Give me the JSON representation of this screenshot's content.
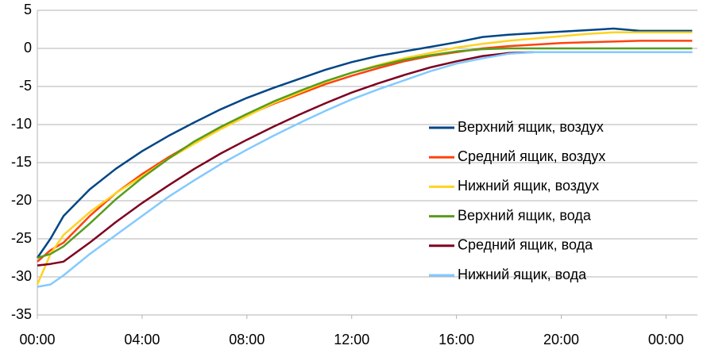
{
  "chart_data": {
    "type": "line",
    "x": [
      0,
      0.5,
      1,
      2,
      3,
      4,
      5,
      6,
      7,
      8,
      9,
      10,
      11,
      12,
      13,
      14,
      15,
      16,
      17,
      18,
      19,
      20,
      21,
      22,
      23,
      24,
      25
    ],
    "xlim": [
      0,
      25.2
    ],
    "xticks": [
      {
        "value": 0,
        "label": "00:00"
      },
      {
        "value": 4,
        "label": "04:00"
      },
      {
        "value": 8,
        "label": "08:00"
      },
      {
        "value": 12,
        "label": "12:00"
      },
      {
        "value": 16,
        "label": "16:00"
      },
      {
        "value": 20,
        "label": "20:00"
      },
      {
        "value": 24,
        "label": "00:00"
      }
    ],
    "ylim": [
      -35,
      5
    ],
    "yticks": [
      -35,
      -30,
      -25,
      -20,
      -15,
      -10,
      -5,
      0,
      5
    ],
    "grid": true,
    "legend": "right",
    "series": [
      {
        "name": "Верхний ящик, воздух",
        "color": "#004586",
        "values": [
          -27.5,
          -25,
          -22,
          -18.5,
          -15.8,
          -13.5,
          -11.5,
          -9.7,
          -8,
          -6.5,
          -5.2,
          -4,
          -2.8,
          -1.8,
          -1,
          -0.4,
          0.2,
          0.8,
          1.5,
          1.8,
          2,
          2.2,
          2.4,
          2.6,
          2.3,
          2.3,
          2.3
        ]
      },
      {
        "name": "Средний ящик, воздух",
        "color": "#ff420e",
        "values": [
          -28,
          -26.5,
          -25.5,
          -22,
          -19,
          -16.5,
          -14.3,
          -12.3,
          -10.5,
          -8.8,
          -7.3,
          -6,
          -4.7,
          -3.6,
          -2.6,
          -1.7,
          -1,
          -0.5,
          0,
          0.3,
          0.5,
          0.7,
          0.8,
          0.9,
          1,
          1,
          1
        ]
      },
      {
        "name": "Нижний ящик, воздух",
        "color": "#ffd320",
        "values": [
          -31,
          -27,
          -24.5,
          -21.5,
          -19,
          -16.8,
          -14.5,
          -12.5,
          -10.6,
          -8.9,
          -7.2,
          -5.8,
          -4.4,
          -3.2,
          -2.2,
          -1.3,
          -0.6,
          0.1,
          0.6,
          1,
          1.3,
          1.6,
          1.9,
          2.1,
          2.1,
          2.1,
          2.1
        ]
      },
      {
        "name": "Верхний ящик, вода",
        "color": "#579d1c",
        "values": [
          -27.5,
          -27,
          -26,
          -23,
          -19.8,
          -17,
          -14.5,
          -12.2,
          -10.3,
          -8.6,
          -7,
          -5.6,
          -4.3,
          -3.2,
          -2.3,
          -1.5,
          -0.9,
          -0.4,
          -0.1,
          0,
          0,
          0,
          0,
          0,
          0,
          0,
          0
        ]
      },
      {
        "name": "Средний ящик, вода",
        "color": "#7e0021",
        "values": [
          -28.5,
          -28.3,
          -28,
          -25.5,
          -22.8,
          -20.3,
          -18,
          -15.8,
          -13.8,
          -12,
          -10.3,
          -8.7,
          -7.2,
          -5.8,
          -4.6,
          -3.5,
          -2.5,
          -1.7,
          -1,
          -0.6,
          -0.5,
          -0.5,
          -0.5,
          -0.5,
          -0.5,
          -0.5,
          -0.5
        ]
      },
      {
        "name": "Нижний ящик, вода",
        "color": "#83caff",
        "values": [
          -31.3,
          -31,
          -29.8,
          -27,
          -24.5,
          -22,
          -19.5,
          -17.3,
          -15.2,
          -13.3,
          -11.5,
          -9.8,
          -8.2,
          -6.7,
          -5.4,
          -4.2,
          -3,
          -2,
          -1.3,
          -0.7,
          -0.5,
          -0.5,
          -0.5,
          -0.5,
          -0.5,
          -0.5,
          -0.5
        ]
      }
    ]
  }
}
